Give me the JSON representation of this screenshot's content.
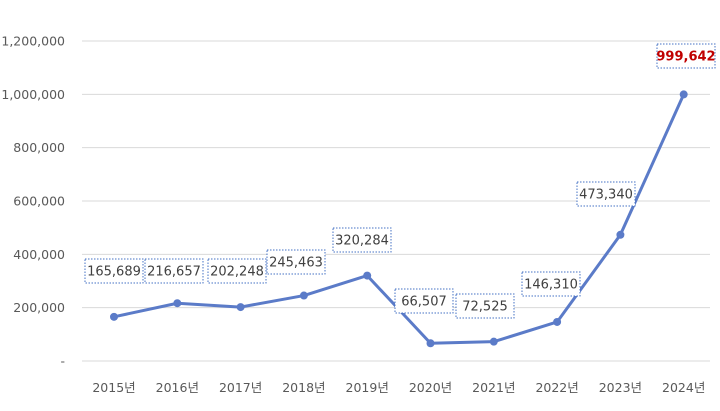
{
  "chart_data": {
    "type": "line",
    "categories": [
      "2015년",
      "2016년",
      "2017년",
      "2018년",
      "2019년",
      "2020년",
      "2021년",
      "2022년",
      "2023년",
      "2024년"
    ],
    "series": [
      {
        "values": [
          165689,
          216657,
          202248,
          245463,
          320284,
          66507,
          72525,
          146310,
          473340,
          999642
        ]
      }
    ],
    "data_labels": [
      "165,689",
      "216,657",
      "202,248",
      "245,463",
      "320,284",
      "66,507",
      "72,525",
      "146,310",
      "473,340",
      "999,642"
    ],
    "highlight_index": 9,
    "y_ticks": [
      {
        "value": 0,
        "label": "-"
      },
      {
        "value": 200000,
        "label": "200,000"
      },
      {
        "value": 400000,
        "label": "400,000"
      },
      {
        "value": 600000,
        "label": "600,000"
      },
      {
        "value": 800000,
        "label": "800,000"
      },
      {
        "value": 1000000,
        "label": "1,000,000"
      },
      {
        "value": 1200000,
        "label": "1,200,000"
      }
    ],
    "ylim": [
      0,
      1200000
    ],
    "grid": true,
    "legend": "none",
    "colors": {
      "line": "#5b7bc8",
      "label_box": "#4472c4",
      "highlight_text": "#c00000",
      "grid": "#d9d9d9"
    }
  }
}
